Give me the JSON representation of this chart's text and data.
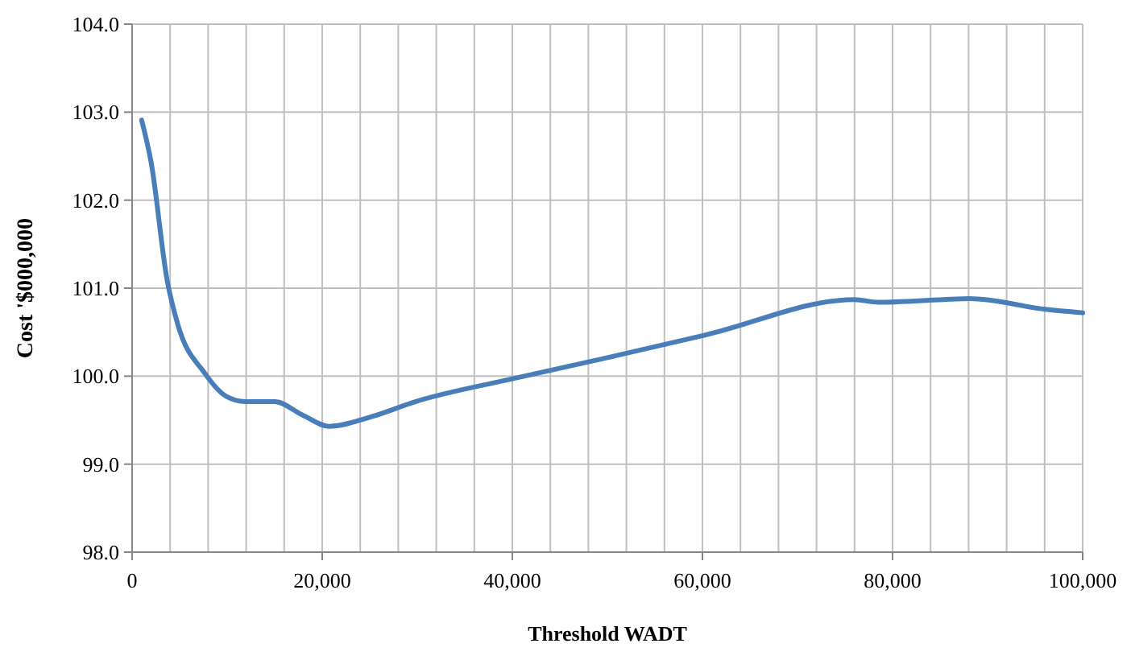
{
  "chart_data": {
    "type": "line",
    "xlabel": "Threshold WADT",
    "ylabel": "Cost '$000,000",
    "x": [
      1000,
      2000,
      3700,
      4800,
      7600,
      9900,
      11900,
      15000,
      17900,
      20700,
      25200,
      29800,
      40000,
      50000,
      60400,
      76000,
      78500,
      85300,
      88100,
      96100,
      100000
    ],
    "series": [
      {
        "color": "#4a7ebb",
        "values": [
          102.91,
          102.43,
          101.08,
          100.59,
          100.04,
          99.77,
          99.71,
          99.71,
          99.56,
          99.43,
          99.54,
          99.71,
          99.97,
          100.21,
          100.47,
          100.87,
          100.84,
          100.87,
          100.88,
          100.76,
          100.72
        ]
      }
    ],
    "xlim": [
      0,
      100000
    ],
    "ylim": [
      98,
      104
    ],
    "xticks": [
      {
        "value": 0,
        "label": "0"
      },
      {
        "value": 4000,
        "label": null
      },
      {
        "value": 8000,
        "label": null
      },
      {
        "value": 12000,
        "label": null
      },
      {
        "value": 16000,
        "label": null
      },
      {
        "value": 20000,
        "label": "20,000"
      },
      {
        "value": 24000,
        "label": null
      },
      {
        "value": 28000,
        "label": null
      },
      {
        "value": 32000,
        "label": null
      },
      {
        "value": 36000,
        "label": null
      },
      {
        "value": 40000,
        "label": "40,000"
      },
      {
        "value": 44000,
        "label": null
      },
      {
        "value": 48000,
        "label": null
      },
      {
        "value": 52000,
        "label": null
      },
      {
        "value": 56000,
        "label": null
      },
      {
        "value": 60000,
        "label": "60,000"
      },
      {
        "value": 64000,
        "label": null
      },
      {
        "value": 68000,
        "label": null
      },
      {
        "value": 72000,
        "label": null
      },
      {
        "value": 76000,
        "label": null
      },
      {
        "value": 80000,
        "label": "80,000"
      },
      {
        "value": 84000,
        "label": null
      },
      {
        "value": 88000,
        "label": null
      },
      {
        "value": 92000,
        "label": null
      },
      {
        "value": 96000,
        "label": null
      },
      {
        "value": 100000,
        "label": "100,000"
      }
    ],
    "yticks": [
      {
        "value": 98,
        "label": "98.0"
      },
      {
        "value": 99,
        "label": "99.0"
      },
      {
        "value": 100,
        "label": "100.0"
      },
      {
        "value": 101,
        "label": "101.0"
      },
      {
        "value": 102,
        "label": "102.0"
      },
      {
        "value": 103,
        "label": "103.0"
      },
      {
        "value": 104,
        "label": "104.0"
      }
    ],
    "grid": true,
    "marker": "none",
    "line_style": "solid"
  }
}
